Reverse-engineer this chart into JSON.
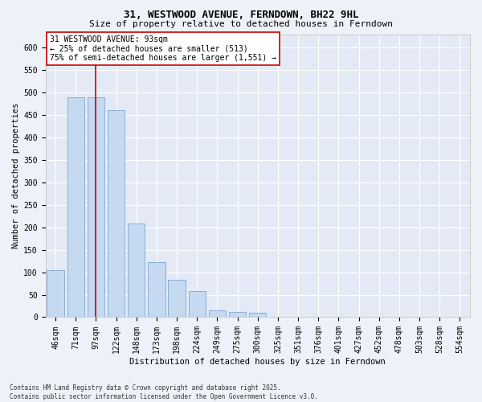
{
  "title": "31, WESTWOOD AVENUE, FERNDOWN, BH22 9HL",
  "subtitle": "Size of property relative to detached houses in Ferndown",
  "xlabel": "Distribution of detached houses by size in Ferndown",
  "ylabel": "Number of detached properties",
  "categories": [
    "46sqm",
    "71sqm",
    "97sqm",
    "122sqm",
    "148sqm",
    "173sqm",
    "198sqm",
    "224sqm",
    "249sqm",
    "275sqm",
    "300sqm",
    "325sqm",
    "351sqm",
    "376sqm",
    "401sqm",
    "427sqm",
    "452sqm",
    "478sqm",
    "503sqm",
    "528sqm",
    "554sqm"
  ],
  "values": [
    105,
    490,
    490,
    460,
    208,
    122,
    84,
    58,
    15,
    11,
    10,
    0,
    0,
    0,
    0,
    0,
    0,
    0,
    0,
    0,
    0
  ],
  "bar_color": "#c5d9f0",
  "bar_edge_color": "#7da6d3",
  "vline_x_idx": 2,
  "vline_color": "#cc0000",
  "annotation_text": "31 WESTWOOD AVENUE: 93sqm\n← 25% of detached houses are smaller (513)\n75% of semi-detached houses are larger (1,551) →",
  "annotation_box_color": "#ffffff",
  "annotation_box_edge": "#cc0000",
  "ylim": [
    0,
    630
  ],
  "yticks": [
    0,
    50,
    100,
    150,
    200,
    250,
    300,
    350,
    400,
    450,
    500,
    550,
    600
  ],
  "footnote": "Contains HM Land Registry data © Crown copyright and database right 2025.\nContains public sector information licensed under the Open Government Licence v3.0.",
  "bg_color": "#eef2f8",
  "plot_bg_color": "#e4eaf5",
  "grid_color": "#ffffff",
  "title_fontsize": 9,
  "subtitle_fontsize": 8,
  "axis_label_fontsize": 7.5,
  "tick_fontsize": 7,
  "annotation_fontsize": 7,
  "footnote_fontsize": 5.5
}
